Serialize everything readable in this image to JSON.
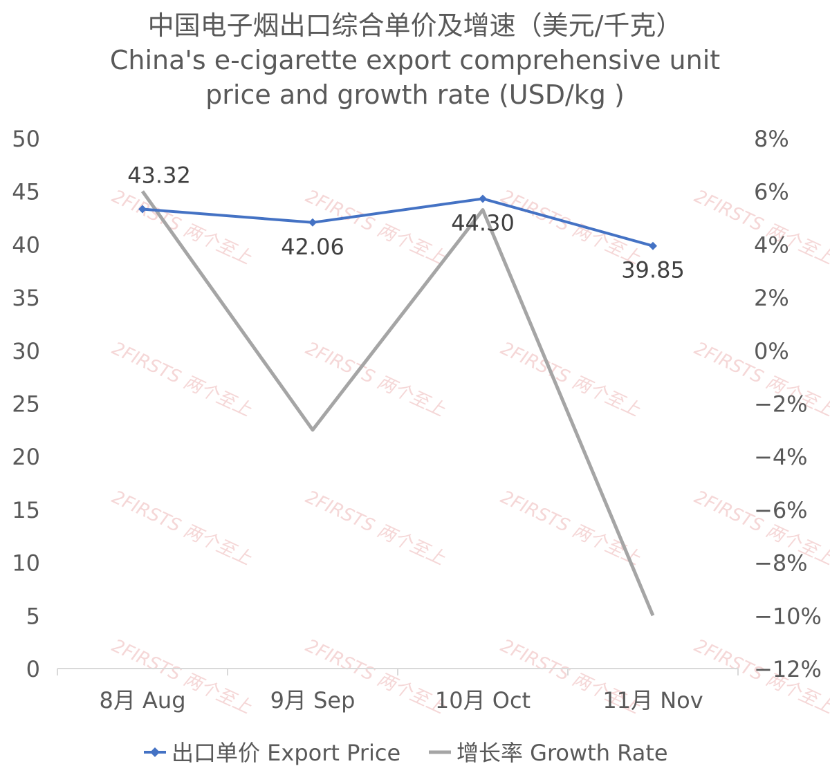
{
  "chart_data": {
    "type": "line",
    "title_zh": "中国电子烟出口综合单价及增速（美元/千克）",
    "title_en_line1": "China's e-cigarette export comprehensive unit",
    "title_en_line2": "price and growth rate (USD/kg )",
    "categories": [
      "8月 Aug",
      "9月 Sep",
      "10月 Oct",
      "11月 Nov"
    ],
    "series": [
      {
        "name": "出口单价 Export Price",
        "axis": "left",
        "color": "#4472c4",
        "marker": "diamond",
        "values": [
          43.32,
          42.06,
          44.3,
          39.85
        ]
      },
      {
        "name": "增长率 Growth Rate",
        "axis": "right",
        "color": "#a5a5a5",
        "values": [
          6.0,
          -3.0,
          5.3,
          -10.0
        ]
      }
    ],
    "y_left": {
      "min": 0,
      "max": 50,
      "step": 5,
      "ticks": [
        "0",
        "5",
        "10",
        "15",
        "20",
        "25",
        "30",
        "35",
        "40",
        "45",
        "50"
      ]
    },
    "y_right": {
      "min": -12,
      "max": 8,
      "step": 2,
      "ticks": [
        "−12%",
        "−10%",
        "−8%",
        "−6%",
        "−4%",
        "−2%",
        "0%",
        "2%",
        "4%",
        "6%",
        "8%"
      ]
    },
    "data_labels": [
      "43.32",
      "42.06",
      "44.30",
      "39.85"
    ],
    "grid": false,
    "legend_position": "bottom",
    "watermark": [
      "2FIRSTS",
      "两个至上"
    ]
  }
}
